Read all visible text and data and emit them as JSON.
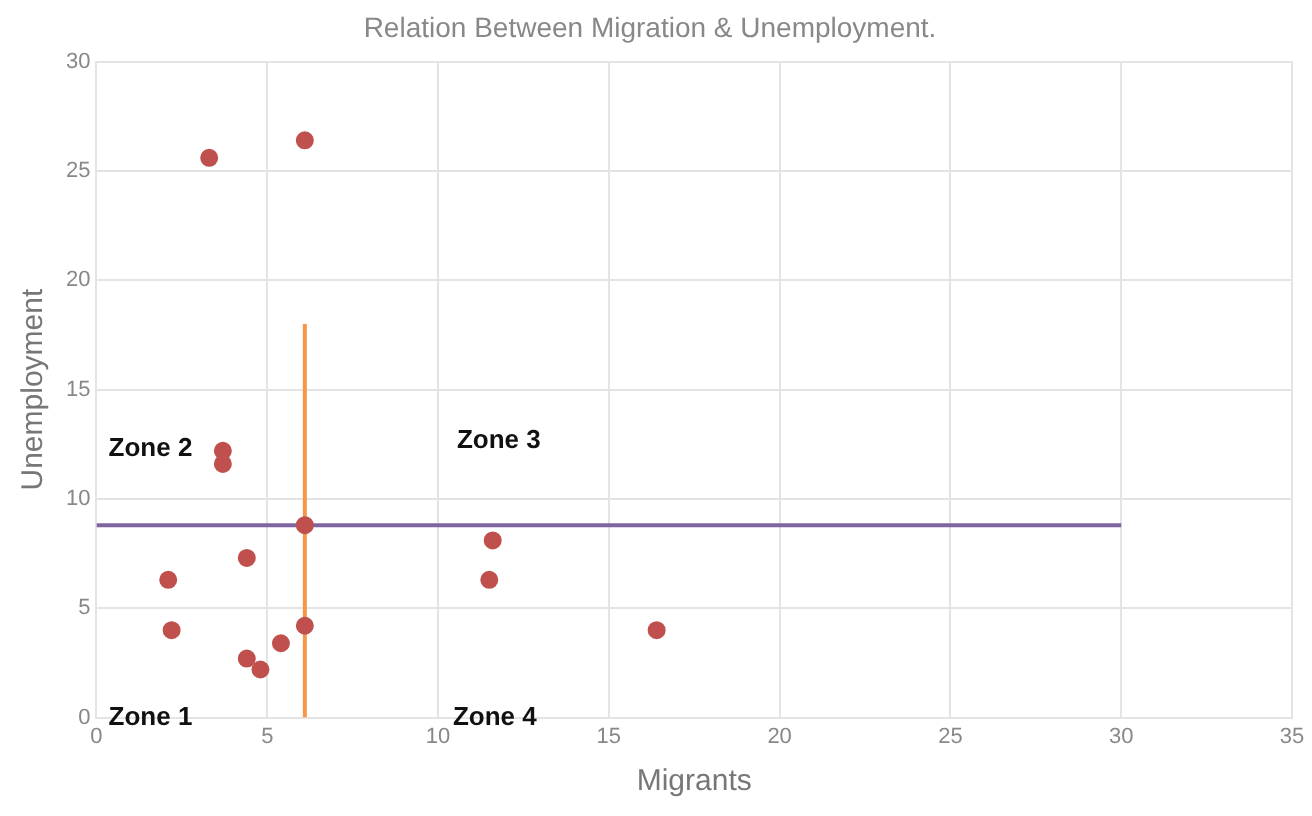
{
  "chart_data": {
    "type": "scatter",
    "title": "Relation Between Migration & Unemployment.",
    "xlabel": "Migrants",
    "ylabel": "Unemployment",
    "xlim": [
      0,
      35
    ],
    "xticks": [
      0,
      5,
      10,
      15,
      20,
      25,
      30,
      35
    ],
    "ylim": [
      0,
      30
    ],
    "yticks": [
      0,
      5,
      10,
      15,
      20,
      25,
      30
    ],
    "grid": true,
    "legend": false,
    "marker": "circle",
    "series": [
      {
        "color": "#c0504d",
        "x": [
          3.3,
          6.1,
          3.7,
          3.7,
          6.1,
          4.4,
          2.1,
          2.2,
          4.4,
          4.8,
          5.4,
          6.1,
          11.6,
          11.5,
          16.4
        ],
        "values": [
          25.6,
          26.4,
          12.2,
          11.6,
          8.8,
          7.3,
          6.3,
          4.0,
          2.7,
          2.2,
          3.4,
          4.2,
          8.1,
          6.3,
          4.0
        ]
      },
      {
        "type": "line",
        "color": "#f79646",
        "marker": "none",
        "x": [
          6.1,
          6.1
        ],
        "values": [
          0,
          18
        ]
      },
      {
        "type": "line",
        "color": "#8064a2",
        "marker": "none",
        "x": [
          0,
          30
        ],
        "values": [
          8.8,
          8.8
        ]
      }
    ],
    "annotations": [
      "Zone 1",
      "Zone 2",
      "Zone 3",
      "Zone 4"
    ]
  }
}
